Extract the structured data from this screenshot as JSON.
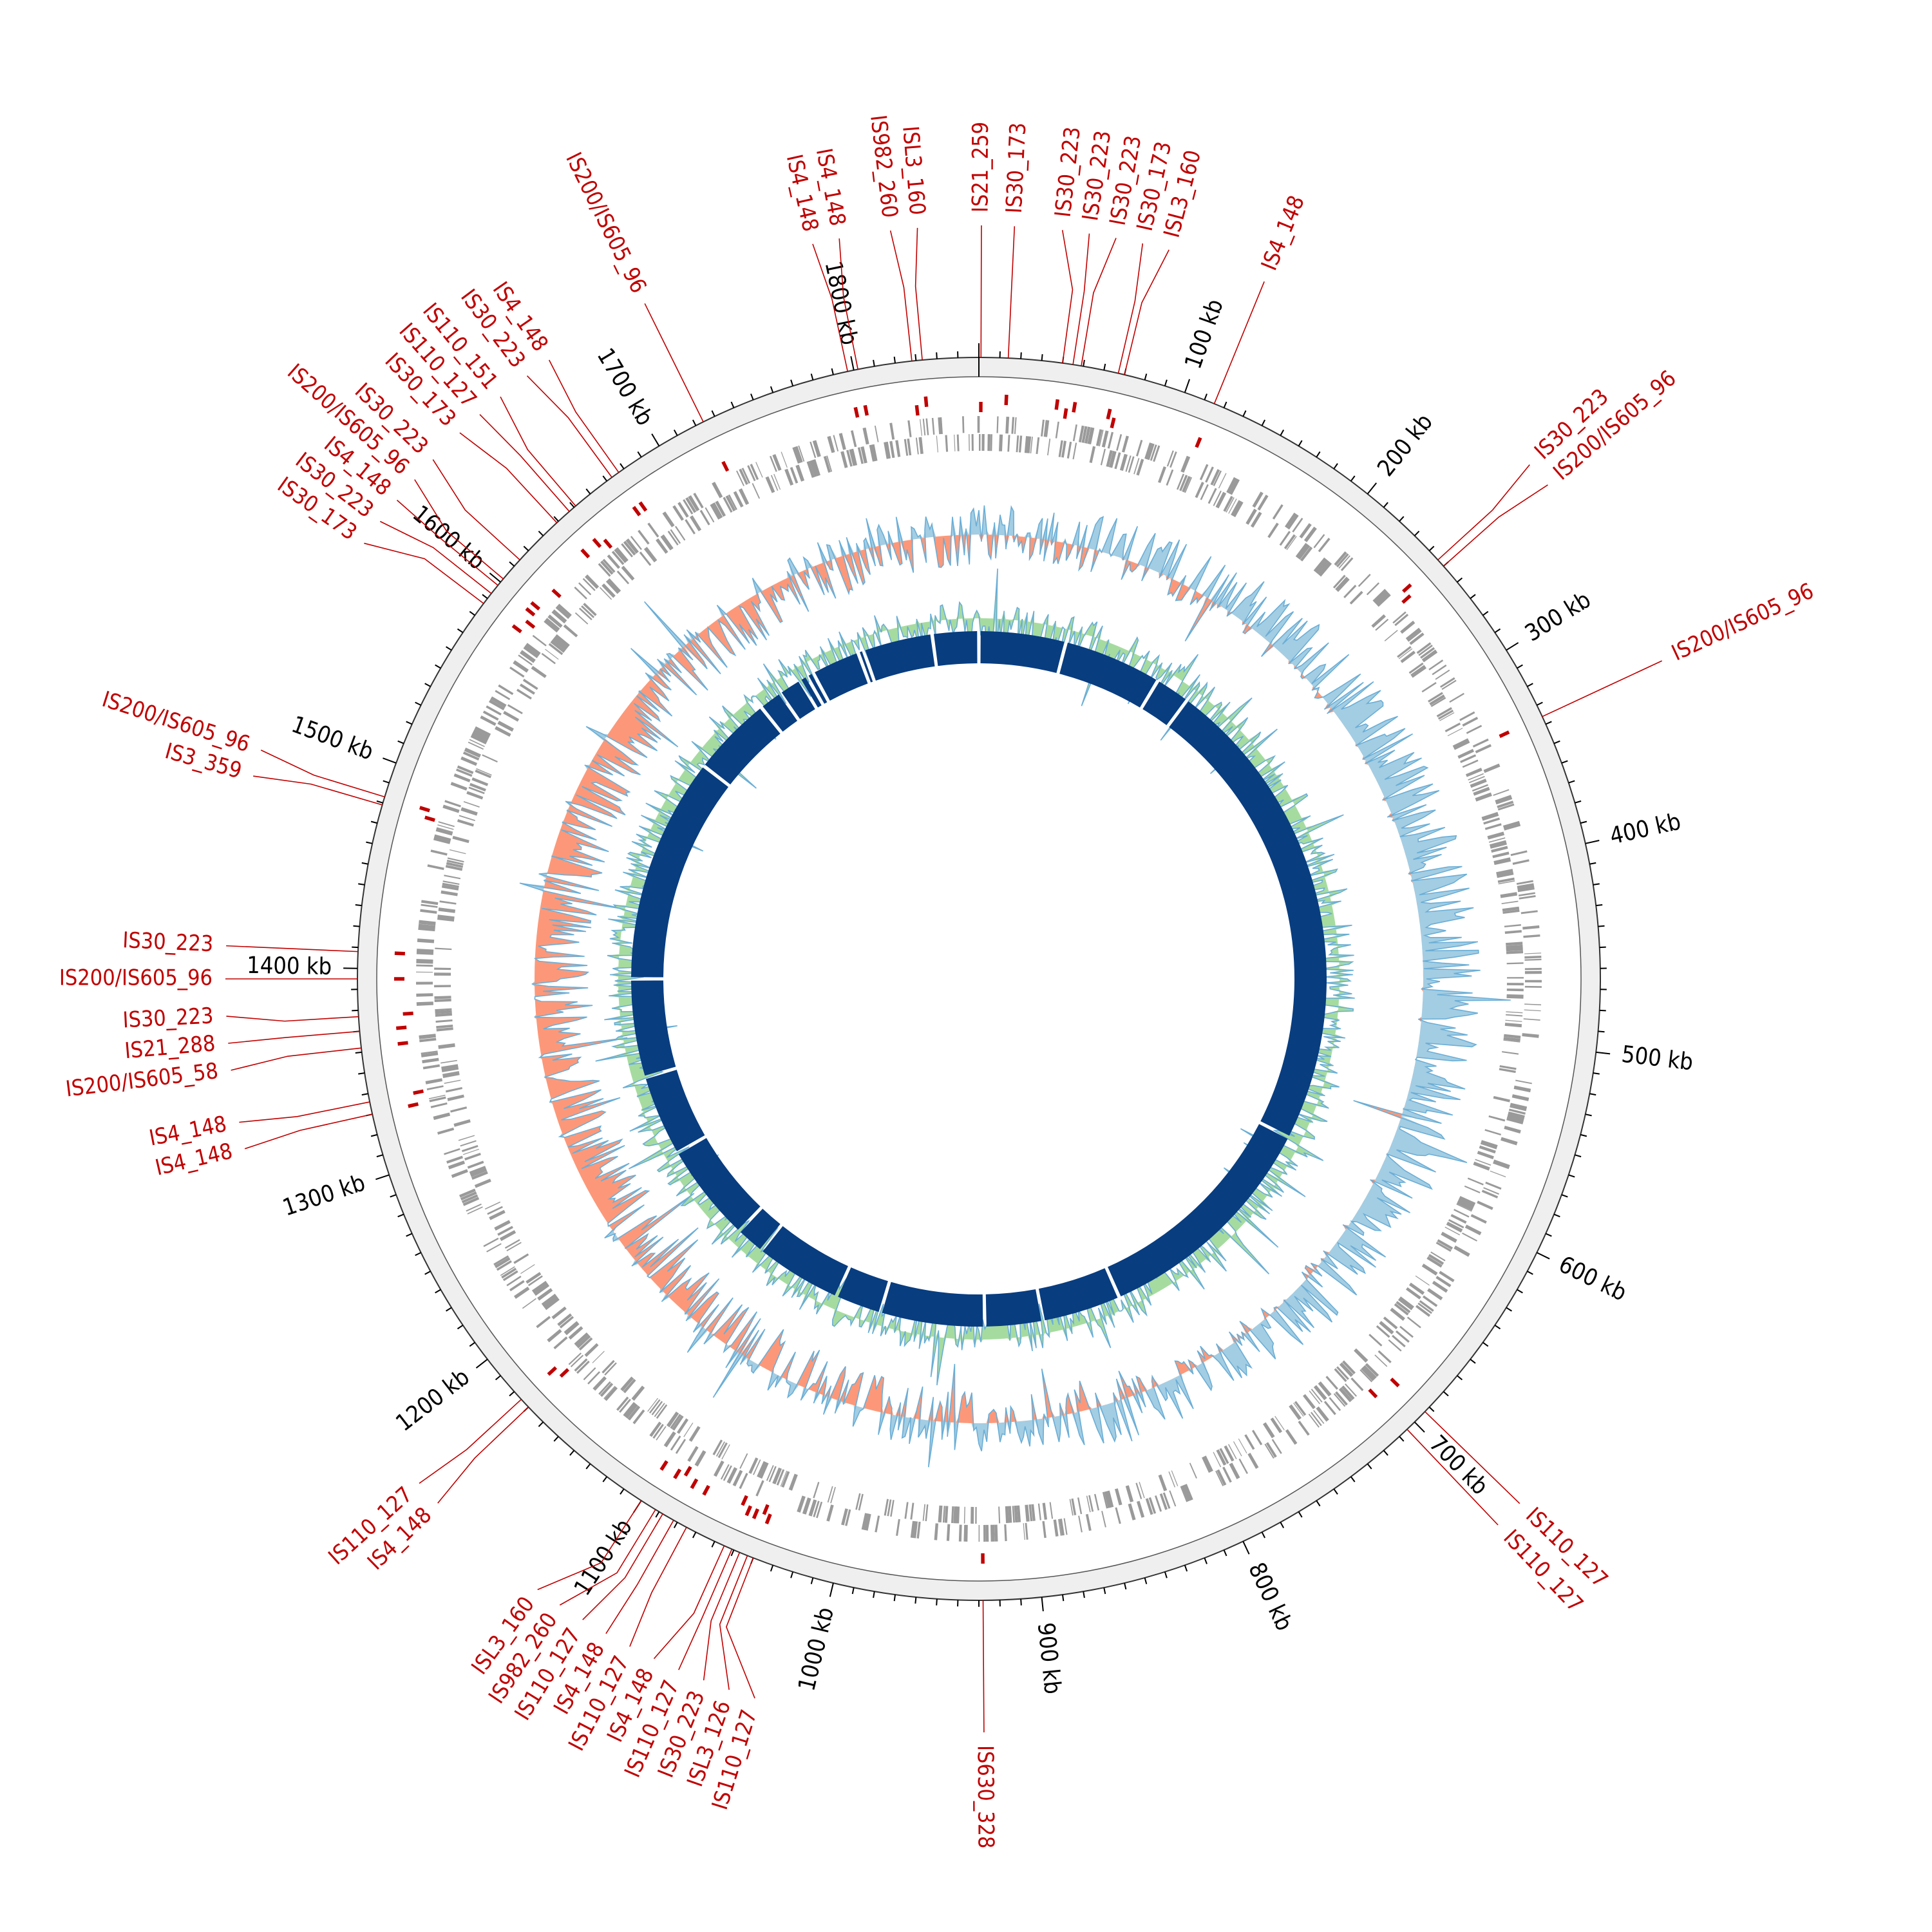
{
  "genome_length_kb": 1860,
  "colors": {
    "ruler_band": "#efefef",
    "ruler_line": "#000000",
    "is_element": "#c00000",
    "feature": "#9a9a9a",
    "gc_positive": "#9ecae1",
    "gc_positive_line": "#6baed6",
    "gc_negative": "#fc9272",
    "skew_positive": "#a1d99b",
    "skew_line": "#6baed6",
    "contig": "#083d80"
  },
  "ruler_labels": [
    {
      "position_kb": 100,
      "text": "100 kb"
    },
    {
      "position_kb": 200,
      "text": "200 kb"
    },
    {
      "position_kb": 300,
      "text": "300 kb"
    },
    {
      "position_kb": 400,
      "text": "400 kb"
    },
    {
      "position_kb": 500,
      "text": "500 kb"
    },
    {
      "position_kb": 600,
      "text": "600 kb"
    },
    {
      "position_kb": 700,
      "text": "700 kb"
    },
    {
      "position_kb": 800,
      "text": "800 kb"
    },
    {
      "position_kb": 900,
      "text": "900 kb"
    },
    {
      "position_kb": 1000,
      "text": "1000 kb"
    },
    {
      "position_kb": 1100,
      "text": "1100 kb"
    },
    {
      "position_kb": 1200,
      "text": "1200 kb"
    },
    {
      "position_kb": 1300,
      "text": "1300 kb"
    },
    {
      "position_kb": 1400,
      "text": "1400 kb"
    },
    {
      "position_kb": 1500,
      "text": "1500 kb"
    },
    {
      "position_kb": 1600,
      "text": "1600 kb"
    },
    {
      "position_kb": 1700,
      "text": "1700 kb"
    },
    {
      "position_kb": 1800,
      "text": "1800 kb"
    }
  ],
  "is_elements": [
    {
      "name": "IS21_259",
      "position_kb": 1
    },
    {
      "name": "IS30_173",
      "position_kb": 14
    },
    {
      "name": "IS30_223",
      "position_kb": 40
    },
    {
      "name": "IS30_223",
      "position_kb": 45
    },
    {
      "name": "IS30_223",
      "position_kb": 49
    },
    {
      "name": "IS30_173",
      "position_kb": 67
    },
    {
      "name": "ISL3_160",
      "position_kb": 70
    },
    {
      "name": "IS4_148",
      "position_kb": 115
    },
    {
      "name": "IS30_223",
      "position_kb": 246
    },
    {
      "name": "IS200/IS605_96",
      "position_kb": 250
    },
    {
      "name": "IS200/IS605_96",
      "position_kb": 336
    },
    {
      "name": "IS110_127",
      "position_kb": 693
    },
    {
      "name": "IS110_127",
      "position_kb": 705
    },
    {
      "name": "IS630_328",
      "position_kb": 928
    },
    {
      "name": "IS110_127",
      "position_kb": 1040
    },
    {
      "name": "ISL3_126",
      "position_kb": 1043
    },
    {
      "name": "IS30_223",
      "position_kb": 1047
    },
    {
      "name": "IS110_127",
      "position_kb": 1051
    },
    {
      "name": "IS4_148",
      "position_kb": 1055
    },
    {
      "name": "IS110_127",
      "position_kb": 1075
    },
    {
      "name": "IS4_148",
      "position_kb": 1082
    },
    {
      "name": "IS110_127",
      "position_kb": 1088
    },
    {
      "name": "IS982_260",
      "position_kb": 1092
    },
    {
      "name": "ISL3_160",
      "position_kb": 1100
    },
    {
      "name": "IS4_148",
      "position_kb": 1170
    },
    {
      "name": "IS110_127",
      "position_kb": 1175
    },
    {
      "name": "IS4_148",
      "position_kb": 1330
    },
    {
      "name": "IS4_148",
      "position_kb": 1336
    },
    {
      "name": "IS200/IS605_58",
      "position_kb": 1362
    },
    {
      "name": "IS21_288",
      "position_kb": 1370
    },
    {
      "name": "IS30_223",
      "position_kb": 1377
    },
    {
      "name": "IS200/IS605_96",
      "position_kb": 1395
    },
    {
      "name": "IS30_223",
      "position_kb": 1408
    },
    {
      "name": "IS3_359",
      "position_kb": 1479
    },
    {
      "name": "IS200/IS605_96",
      "position_kb": 1483
    },
    {
      "name": "IS30_173",
      "position_kb": 1587
    },
    {
      "name": "IS30_223",
      "position_kb": 1593
    },
    {
      "name": "IS4_148",
      "position_kb": 1598
    },
    {
      "name": "IS200/IS605_96",
      "position_kb": 1602
    },
    {
      "name": "IS30_223",
      "position_kb": 1614
    },
    {
      "name": "IS30_173",
      "position_kb": 1639
    },
    {
      "name": "IS110_127",
      "position_kb": 1647
    },
    {
      "name": "IS110_151",
      "position_kb": 1651
    },
    {
      "name": "IS30_223",
      "position_kb": 1673
    },
    {
      "name": "IS4_148",
      "position_kb": 1677
    },
    {
      "name": "IS200/IS605_96",
      "position_kb": 1724
    },
    {
      "name": "IS4_148",
      "position_kb": 1797
    },
    {
      "name": "IS4_148",
      "position_kb": 1802
    },
    {
      "name": "IS982_260",
      "position_kb": 1828
    },
    {
      "name": "ISL3_160",
      "position_kb": 1833
    }
  ],
  "contig_gaps_kb": [
    75,
    160,
    190,
    605,
    807,
    875,
    925,
    1015,
    1055,
    1130,
    1155,
    1240,
    1310,
    1395,
    1590,
    1660,
    1680,
    1700,
    1707,
    1713,
    1755,
    1760,
    1820
  ]
}
